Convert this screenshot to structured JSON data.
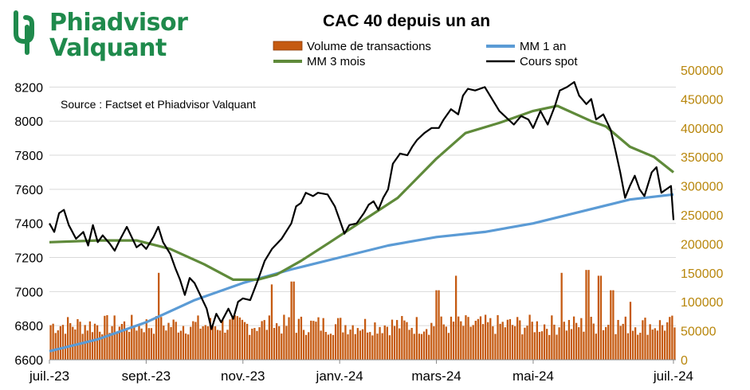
{
  "logo": {
    "line1": "Phiadvisor",
    "line2": "Valquant",
    "color": "#1f8a4c"
  },
  "chart_data": {
    "type": "line+bar",
    "title": "CAC 40 depuis un an",
    "annotation": "Source : Factset et Phiadvisor Valquant",
    "x_ticks": [
      "juil.-23",
      "sept.-23",
      "nov.-23",
      "janv.-24",
      "mars-24",
      "mai-24",
      "juil.-24"
    ],
    "y_left": {
      "ticks": [
        6600,
        6800,
        7000,
        7200,
        7400,
        7600,
        7800,
        8000,
        8200
      ],
      "range": [
        6600,
        8300
      ]
    },
    "y_right": {
      "ticks": [
        0,
        50000,
        100000,
        150000,
        200000,
        250000,
        300000,
        350000,
        400000,
        450000,
        500000
      ],
      "range": [
        0,
        500000
      ],
      "color": "#b8860b"
    },
    "grid": true,
    "legend_position": "top",
    "series": [
      {
        "name": "Volume de transactions",
        "kind": "bar",
        "axis": "right",
        "color": "#c55a11",
        "note": "daily volume, mostly 40000-80000 with spikes",
        "spikes": [
          {
            "month": 2.25,
            "value": 150000
          },
          {
            "month": 4.55,
            "value": 130000
          },
          {
            "month": 5.0,
            "value": 135000
          },
          {
            "month": 8.0,
            "value": 120000
          },
          {
            "month": 8.4,
            "value": 145000
          },
          {
            "month": 10.55,
            "value": 150000
          },
          {
            "month": 11.1,
            "value": 155000
          },
          {
            "month": 11.35,
            "value": 145000
          },
          {
            "month": 11.6,
            "value": 120000
          },
          {
            "month": 12.0,
            "value": 100000
          }
        ]
      },
      {
        "name": "MM 1 an",
        "kind": "line",
        "axis": "left",
        "color": "#5b9bd5",
        "points": [
          [
            0,
            6650
          ],
          [
            1,
            6720
          ],
          [
            2,
            6820
          ],
          [
            3,
            6950
          ],
          [
            4,
            7050
          ],
          [
            5,
            7130
          ],
          [
            6,
            7200
          ],
          [
            7,
            7270
          ],
          [
            8,
            7320
          ],
          [
            9,
            7350
          ],
          [
            10,
            7400
          ],
          [
            11,
            7470
          ],
          [
            12,
            7540
          ],
          [
            12.9,
            7570
          ]
        ]
      },
      {
        "name": "MM 3 mois",
        "kind": "line",
        "axis": "left",
        "color": "#5f8a3a",
        "points": [
          [
            0,
            7290
          ],
          [
            1,
            7300
          ],
          [
            1.8,
            7300
          ],
          [
            2.5,
            7250
          ],
          [
            3.2,
            7160
          ],
          [
            3.8,
            7070
          ],
          [
            4.3,
            7070
          ],
          [
            4.7,
            7100
          ],
          [
            5.2,
            7180
          ],
          [
            5.8,
            7290
          ],
          [
            6.5,
            7420
          ],
          [
            7.2,
            7550
          ],
          [
            8.0,
            7780
          ],
          [
            8.6,
            7930
          ],
          [
            9.3,
            7990
          ],
          [
            10.0,
            8060
          ],
          [
            10.5,
            8090
          ],
          [
            11.2,
            8000
          ],
          [
            11.5,
            7970
          ],
          [
            12.0,
            7850
          ],
          [
            12.5,
            7790
          ],
          [
            12.9,
            7700
          ]
        ]
      },
      {
        "name": "Cours spot",
        "kind": "line",
        "axis": "left",
        "color": "#000000",
        "points": [
          [
            0,
            7400
          ],
          [
            0.1,
            7350
          ],
          [
            0.2,
            7460
          ],
          [
            0.3,
            7480
          ],
          [
            0.4,
            7390
          ],
          [
            0.55,
            7310
          ],
          [
            0.7,
            7350
          ],
          [
            0.8,
            7270
          ],
          [
            0.9,
            7390
          ],
          [
            1.0,
            7290
          ],
          [
            1.1,
            7330
          ],
          [
            1.25,
            7280
          ],
          [
            1.35,
            7240
          ],
          [
            1.45,
            7300
          ],
          [
            1.6,
            7380
          ],
          [
            1.7,
            7320
          ],
          [
            1.8,
            7260
          ],
          [
            1.9,
            7280
          ],
          [
            2.0,
            7250
          ],
          [
            2.15,
            7320
          ],
          [
            2.25,
            7380
          ],
          [
            2.35,
            7290
          ],
          [
            2.5,
            7220
          ],
          [
            2.6,
            7140
          ],
          [
            2.7,
            7070
          ],
          [
            2.8,
            6980
          ],
          [
            2.9,
            7080
          ],
          [
            3.0,
            7050
          ],
          [
            3.1,
            6990
          ],
          [
            3.25,
            6900
          ],
          [
            3.35,
            6780
          ],
          [
            3.45,
            6870
          ],
          [
            3.55,
            6820
          ],
          [
            3.7,
            6900
          ],
          [
            3.8,
            6840
          ],
          [
            3.9,
            6940
          ],
          [
            4.0,
            6960
          ],
          [
            4.15,
            6950
          ],
          [
            4.3,
            7060
          ],
          [
            4.45,
            7180
          ],
          [
            4.6,
            7250
          ],
          [
            4.8,
            7310
          ],
          [
            5.0,
            7400
          ],
          [
            5.1,
            7500
          ],
          [
            5.2,
            7520
          ],
          [
            5.3,
            7580
          ],
          [
            5.45,
            7560
          ],
          [
            5.55,
            7580
          ],
          [
            5.75,
            7570
          ],
          [
            5.9,
            7500
          ],
          [
            6.0,
            7420
          ],
          [
            6.1,
            7340
          ],
          [
            6.2,
            7390
          ],
          [
            6.35,
            7400
          ],
          [
            6.5,
            7460
          ],
          [
            6.6,
            7510
          ],
          [
            6.7,
            7530
          ],
          [
            6.8,
            7480
          ],
          [
            6.9,
            7550
          ],
          [
            7.0,
            7600
          ],
          [
            7.1,
            7750
          ],
          [
            7.25,
            7810
          ],
          [
            7.4,
            7800
          ],
          [
            7.5,
            7850
          ],
          [
            7.6,
            7890
          ],
          [
            7.75,
            7930
          ],
          [
            7.9,
            7960
          ],
          [
            8.05,
            7960
          ],
          [
            8.15,
            8010
          ],
          [
            8.3,
            8070
          ],
          [
            8.45,
            8040
          ],
          [
            8.55,
            8150
          ],
          [
            8.65,
            8190
          ],
          [
            8.8,
            8180
          ],
          [
            9.0,
            8200
          ],
          [
            9.15,
            8130
          ],
          [
            9.3,
            8060
          ],
          [
            9.45,
            8020
          ],
          [
            9.6,
            7980
          ],
          [
            9.75,
            8030
          ],
          [
            9.9,
            8010
          ],
          [
            10.0,
            7960
          ],
          [
            10.15,
            8060
          ],
          [
            10.3,
            7980
          ],
          [
            10.45,
            8090
          ],
          [
            10.55,
            8180
          ],
          [
            10.7,
            8200
          ],
          [
            10.85,
            8230
          ],
          [
            10.95,
            8150
          ],
          [
            11.1,
            8100
          ],
          [
            11.2,
            8130
          ],
          [
            11.3,
            8010
          ],
          [
            11.45,
            8040
          ],
          [
            11.6,
            7950
          ],
          [
            11.7,
            7830
          ],
          [
            11.8,
            7700
          ],
          [
            11.9,
            7550
          ],
          [
            12.0,
            7620
          ],
          [
            12.1,
            7680
          ],
          [
            12.2,
            7600
          ],
          [
            12.3,
            7560
          ],
          [
            12.45,
            7700
          ],
          [
            12.55,
            7730
          ],
          [
            12.65,
            7580
          ],
          [
            12.75,
            7600
          ],
          [
            12.85,
            7620
          ],
          [
            12.9,
            7420
          ]
        ]
      }
    ]
  }
}
